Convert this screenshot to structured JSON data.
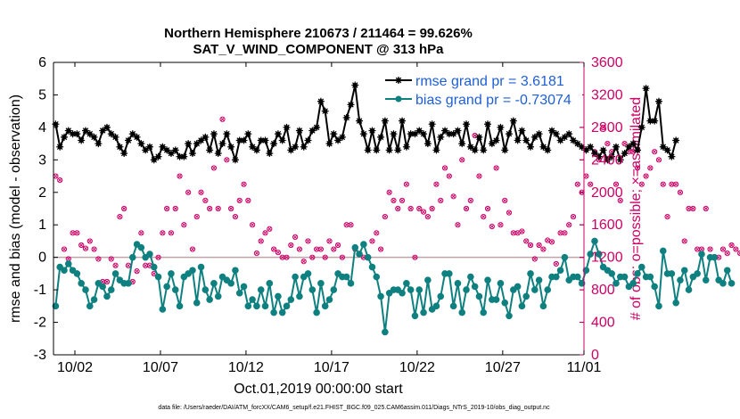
{
  "chart_data": {
    "type": "line",
    "title": "Northern Hemisphere 210673 / 211464 = 99.626%",
    "subtitle": "SAT_V_WIND_COMPONENT @ 313 hPa",
    "xlabel": "Oct.01,2019 00:00:00 start",
    "ylabel": "rmse and bias (model - observation)",
    "ylabel_right": "# of obs: o=possible; ×=assimilated",
    "xlim": [
      0,
      31
    ],
    "ylim": [
      -3,
      6
    ],
    "ylim_right": [
      0,
      3600
    ],
    "x_ticks": [
      {
        "v": 1.25,
        "label": "10/02"
      },
      {
        "v": 6.25,
        "label": "10/07"
      },
      {
        "v": 11.25,
        "label": "10/12"
      },
      {
        "v": 16.25,
        "label": "10/17"
      },
      {
        "v": 21.25,
        "label": "10/22"
      },
      {
        "v": 26.25,
        "label": "10/27"
      },
      {
        "v": 31.0,
        "label": "11/01"
      }
    ],
    "y_ticks": [
      -3,
      -2,
      -1,
      0,
      1,
      2,
      3,
      4,
      5,
      6
    ],
    "y_ticks_right": [
      0,
      400,
      800,
      1200,
      1600,
      2000,
      2400,
      2800,
      3200,
      3600
    ],
    "zero_line": 0,
    "series": [
      {
        "name": "rmse grand pr = 3.6181",
        "color": "#000000",
        "axis": "left",
        "x_step": 0.25,
        "values": [
          4.1,
          3.4,
          3.7,
          3.9,
          3.8,
          3.8,
          3.6,
          3.9,
          3.8,
          3.7,
          3.5,
          3.9,
          4.0,
          3.8,
          3.7,
          3.4,
          3.2,
          3.6,
          3.8,
          3.7,
          3.5,
          3.3,
          3.4,
          3.0,
          3.1,
          3.4,
          3.3,
          3.2,
          3.3,
          3.1,
          3.1,
          3.5,
          3.2,
          3.5,
          3.6,
          3.7,
          3.3,
          3.8,
          3.2,
          3.5,
          3.8,
          3.4,
          3.0,
          3.6,
          3.6,
          3.8,
          3.4,
          3.3,
          3.6,
          3.6,
          3.2,
          3.5,
          3.8,
          3.6,
          4.0,
          3.3,
          3.4,
          3.9,
          3.4,
          3.6,
          3.9,
          4.0,
          4.8,
          4.5,
          3.5,
          3.8,
          3.6,
          3.7,
          4.3,
          4.7,
          5.3,
          4.2,
          3.8,
          3.3,
          3.9,
          3.3,
          3.7,
          4.2,
          3.3,
          3.8,
          3.3,
          4.2,
          3.4,
          3.8,
          3.8,
          3.9,
          3.8,
          3.5,
          4.1,
          3.3,
          3.7,
          3.9,
          3.8,
          3.8,
          3.9,
          3.5,
          4.1,
          3.4,
          3.3,
          3.7,
          3.3,
          4.1,
          3.5,
          3.6,
          4.0,
          3.3,
          3.8,
          4.2,
          3.6,
          3.9,
          3.6,
          3.4,
          3.7,
          3.8,
          3.4,
          3.3,
          3.9,
          3.8,
          3.6,
          3.7,
          3.8,
          3.6,
          3.5,
          3.4,
          3.3,
          3.4,
          3.2,
          3.1,
          3.3,
          3.0,
          3.1,
          3.4,
          3.0,
          3.2,
          3.4,
          3.5,
          3.3,
          4.0,
          5.2,
          4.2,
          4.2,
          4.8,
          3.4,
          3.3,
          3.1,
          3.6
        ]
      },
      {
        "name": "bias grand pr = -0.73074",
        "color": "#0f8080",
        "axis": "left",
        "x_step": 0.25,
        "values": [
          -1.5,
          -0.3,
          -0.4,
          -0.2,
          -0.4,
          -0.5,
          -0.8,
          -1.0,
          -1.5,
          -1.3,
          -0.8,
          -0.9,
          -1.2,
          -1.0,
          -0.5,
          -0.7,
          -0.8,
          -0.8,
          0.0,
          0.4,
          0.3,
          0.0,
          0.1,
          -0.3,
          -0.6,
          -1.6,
          -0.9,
          -0.5,
          -1.0,
          -1.5,
          -0.6,
          -0.5,
          -0.4,
          -1.4,
          -0.3,
          -1.0,
          -1.3,
          -0.8,
          -1.2,
          -0.6,
          -0.7,
          -0.8,
          -0.4,
          -1.1,
          -0.9,
          -1.5,
          -1.3,
          -1.5,
          -1.0,
          -1.5,
          -0.8,
          -1.7,
          -1.2,
          -1.7,
          -1.5,
          -1.3,
          -0.6,
          -1.2,
          -0.6,
          -0.5,
          -1.0,
          -1.7,
          -0.8,
          -1.5,
          -1.3,
          -1.0,
          -0.5,
          -0.6,
          -0.6,
          -0.8,
          0.3,
          0.1,
          0.4,
          0.0,
          -0.3,
          -0.6,
          -1.2,
          -2.3,
          -1.1,
          -1.0,
          -1.0,
          -1.1,
          -0.8,
          -1.0,
          -1.8,
          -1.0,
          -1.7,
          -0.7,
          -1.6,
          -1.5,
          -1.2,
          -0.5,
          -0.5,
          -1.5,
          -0.8,
          -1.7,
          -1.0,
          -0.6,
          -0.9,
          -1.2,
          -1.7,
          -0.7,
          -1.3,
          -1.3,
          -0.8,
          -1.4,
          -1.8,
          -1.0,
          -0.9,
          -1.5,
          -1.2,
          -0.5,
          -1.0,
          -0.7,
          -1.5,
          -1.0,
          -0.6,
          -0.6,
          -0.4,
          0.0,
          -0.7,
          -0.6,
          -0.6,
          -0.8,
          -0.4,
          0.1,
          0.5,
          0.1,
          -0.3,
          -0.4,
          -0.5,
          -0.8,
          -0.6,
          -0.6,
          -0.9,
          -0.8,
          -0.5,
          -0.3,
          -0.6,
          -0.6,
          -0.9,
          -1.5,
          0.2,
          -0.5,
          -0.5,
          -1.4,
          -0.7,
          -0.4,
          -1.0,
          -0.6,
          -0.5,
          0.1,
          -0.7,
          0.0,
          0.0,
          -0.7,
          -0.8,
          -0.4,
          -0.8
        ]
      },
      {
        "name": "obs possible",
        "color": "#cc0066",
        "axis": "right",
        "x_step": 0.25,
        "values": [
          2200,
          2150,
          1300,
          1180,
          1500,
          1500,
          1350,
          1310,
          1400,
          1300,
          1180,
          900,
          900,
          1180,
          1100,
          1700,
          1800,
          1100,
          900,
          1030,
          1500,
          1100,
          1100,
          1000,
          1200,
          1500,
          1800,
          1500,
          1800,
          2200,
          1600,
          2000,
          1300,
          1700,
          2000,
          1900,
          1800,
          2300,
          1800,
          2900,
          2400,
          1800,
          1700,
          1900,
          2100,
          1900,
          1600,
          1250,
          1400,
          1500,
          1550,
          1300,
          1260,
          1200,
          1200,
          1350,
          1450,
          1300,
          1150,
          1400,
          1200,
          1300,
          1300,
          1200,
          1400,
          1300,
          1350,
          1200,
          1600,
          1600,
          1300,
          1240,
          1200,
          1200,
          1400,
          1500,
          1300,
          1700,
          2000,
          1900,
          1800,
          1900,
          2100,
          1800,
          1200,
          1800,
          1760,
          1700,
          1800,
          2100,
          1900,
          2300,
          2200,
          1950,
          1600,
          2400,
          1800,
          1900,
          2700,
          2200,
          1700,
          1800,
          1580,
          2300,
          1600,
          1900,
          1750,
          1500,
          1500,
          1520,
          1400,
          1350,
          1180,
          1350,
          1300,
          1410,
          1390,
          1120,
          1500,
          1500,
          1600,
          1700,
          2100,
          2000,
          2200,
          2100,
          2500,
          2400,
          2800,
          2600,
          2500,
          2100,
          1900,
          2600,
          2500,
          2500,
          2300,
          2100,
          2200,
          2300,
          2500,
          2400,
          2100,
          1700,
          2100,
          2100,
          2000,
          1400,
          1800,
          1800,
          1300,
          1300,
          1800,
          1300,
          1200,
          1200,
          1300,
          1250,
          1350,
          1300,
          1250,
          1500,
          1200
        ]
      }
    ]
  },
  "footer": "data file: /Users/raeder/DAI/ATM_forcXX/CAM6_setup/f.e21.FHIST_BGC.f09_025.CAM6assim.011/Diags_NTrS_2019-10/obs_diag_output.nc"
}
